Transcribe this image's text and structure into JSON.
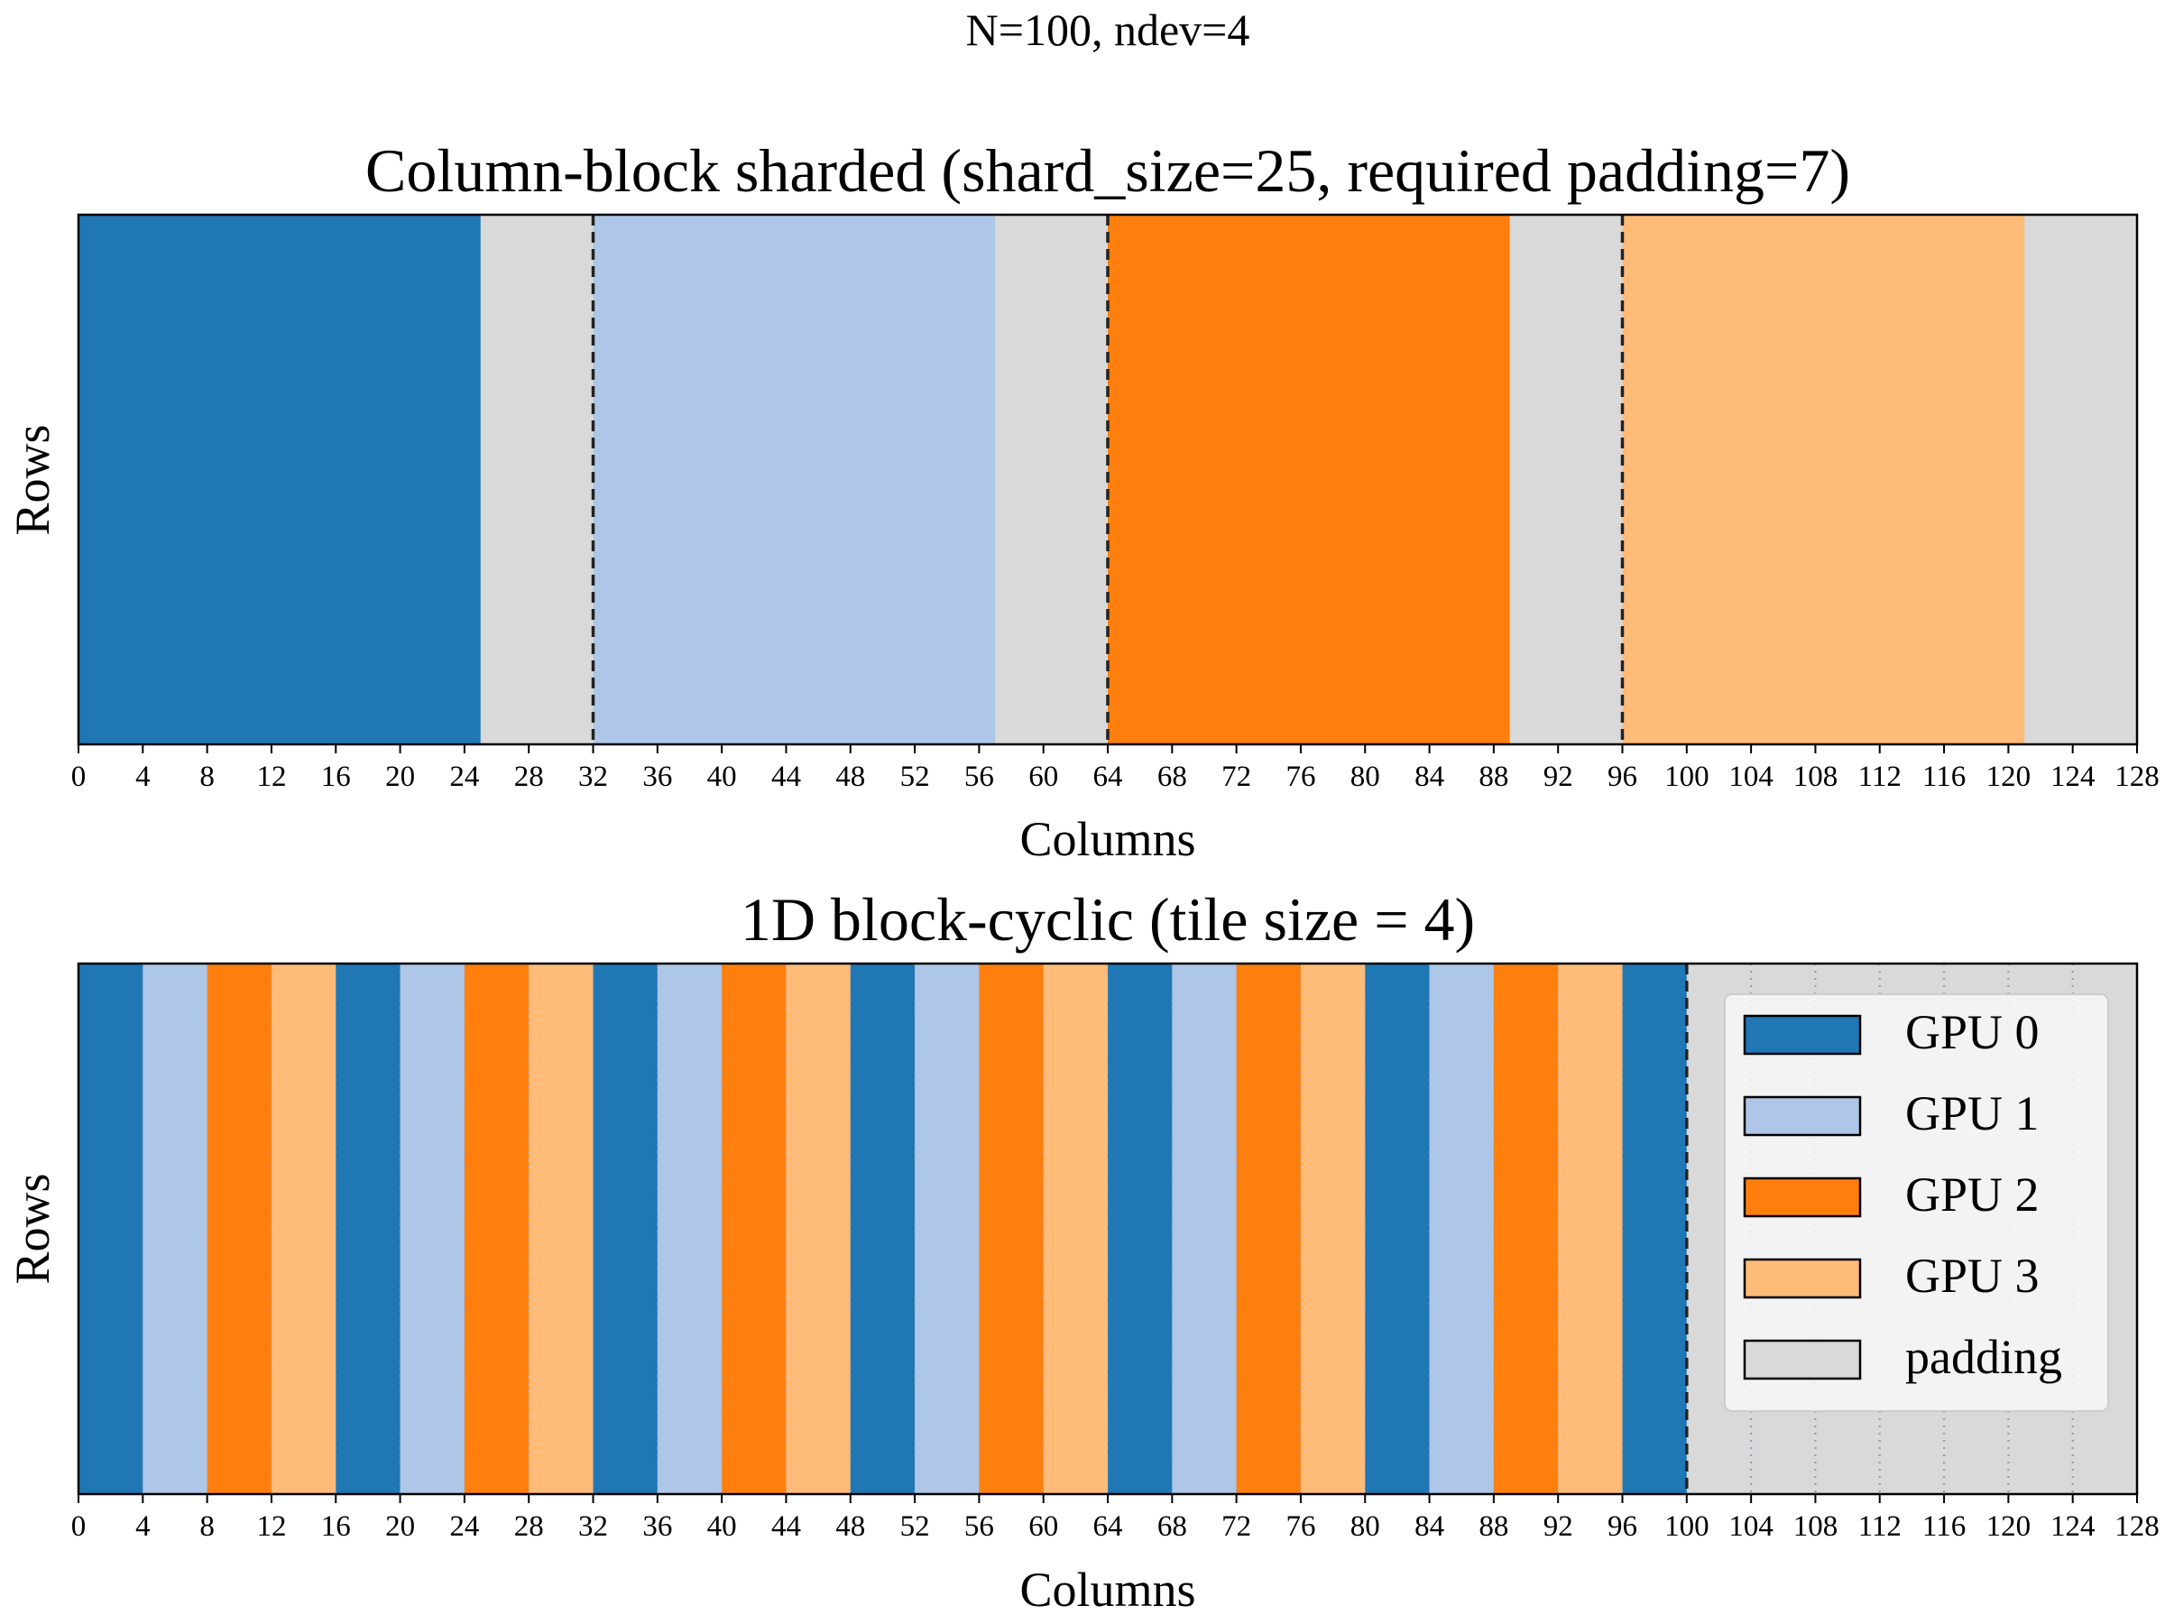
{
  "figure": {
    "suptitle": "N=100, ndev=4"
  },
  "colors": {
    "gpu0": "#1f77b4",
    "gpu1": "#aec7e8",
    "gpu2": "#ff7f0e",
    "gpu3": "#ffbb78",
    "padding": "#d9d9d9",
    "minor_grid": "#6b9bc8"
  },
  "legend": {
    "placement": "center-right",
    "entries": [
      {
        "label": "GPU 0",
        "color": "#1f77b4"
      },
      {
        "label": "GPU 1",
        "color": "#aec7e8"
      },
      {
        "label": "GPU 2",
        "color": "#ff7f0e"
      },
      {
        "label": "GPU 3",
        "color": "#ffbb78"
      },
      {
        "label": "padding",
        "color": "#d9d9d9"
      }
    ]
  },
  "chart_data": [
    {
      "type": "heatmap",
      "title": "Column-block sharded (shard_size=25, required padding=7)",
      "xlabel": "Columns",
      "ylabel": "Rows",
      "xlim": [
        0,
        128
      ],
      "xticks": [
        0,
        4,
        8,
        12,
        16,
        20,
        24,
        28,
        32,
        36,
        40,
        44,
        48,
        52,
        56,
        60,
        64,
        68,
        72,
        76,
        80,
        84,
        88,
        92,
        96,
        100,
        104,
        108,
        112,
        116,
        120,
        124,
        128
      ],
      "segments": [
        {
          "start": 0,
          "end": 25,
          "owner": "GPU 0"
        },
        {
          "start": 25,
          "end": 32,
          "owner": "padding"
        },
        {
          "start": 32,
          "end": 57,
          "owner": "GPU 1"
        },
        {
          "start": 57,
          "end": 64,
          "owner": "padding"
        },
        {
          "start": 64,
          "end": 89,
          "owner": "GPU 2"
        },
        {
          "start": 89,
          "end": 96,
          "owner": "padding"
        },
        {
          "start": 96,
          "end": 121,
          "owner": "GPU 3"
        },
        {
          "start": 121,
          "end": 128,
          "owner": "padding"
        }
      ],
      "boundaries": [
        32,
        64,
        96
      ],
      "grid": false
    },
    {
      "type": "heatmap",
      "title": "1D block-cyclic (tile size = 4)",
      "xlabel": "Columns",
      "ylabel": "Rows",
      "xlim": [
        0,
        128
      ],
      "xticks": [
        0,
        4,
        8,
        12,
        16,
        20,
        24,
        28,
        32,
        36,
        40,
        44,
        48,
        52,
        56,
        60,
        64,
        68,
        72,
        76,
        80,
        84,
        88,
        92,
        96,
        100,
        104,
        108,
        112,
        116,
        120,
        124,
        128
      ],
      "tile_size": 4,
      "data_columns": 100,
      "owner_cycle": [
        "GPU 0",
        "GPU 1",
        "GPU 2",
        "GPU 3"
      ],
      "padding_range": [
        100,
        128
      ],
      "boundaries": [
        100
      ],
      "grid": true
    }
  ]
}
